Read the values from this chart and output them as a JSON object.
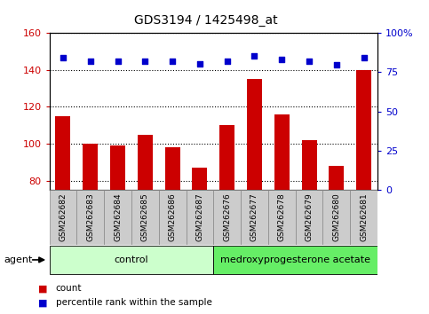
{
  "title": "GDS3194 / 1425498_at",
  "samples": [
    "GSM262682",
    "GSM262683",
    "GSM262684",
    "GSM262685",
    "GSM262686",
    "GSM262687",
    "GSM262676",
    "GSM262677",
    "GSM262678",
    "GSM262679",
    "GSM262680",
    "GSM262681"
  ],
  "counts": [
    115,
    100,
    99,
    105,
    98,
    87,
    110,
    135,
    116,
    102,
    88,
    140
  ],
  "percentile_ranks_left": [
    146.5,
    144.5,
    144.5,
    144.5,
    144.5,
    143.5,
    144.5,
    147.5,
    145.5,
    144.5,
    143.0,
    146.5
  ],
  "ylim_left": [
    75,
    160
  ],
  "ylim_right": [
    0,
    100
  ],
  "yticks_left": [
    80,
    100,
    120,
    140,
    160
  ],
  "yticks_right": [
    0,
    25,
    50,
    75,
    100
  ],
  "bar_color": "#cc0000",
  "dot_color": "#0000cc",
  "control_group": [
    0,
    1,
    2,
    3,
    4,
    5
  ],
  "treatment_group": [
    6,
    7,
    8,
    9,
    10,
    11
  ],
  "control_label": "control",
  "treatment_label": "medroxyprogesterone acetate",
  "control_color": "#ccffcc",
  "treatment_color": "#66ee66",
  "agent_label": "agent",
  "legend_count_label": "count",
  "legend_pct_label": "percentile rank within the sample",
  "left_tick_color": "#cc0000",
  "right_tick_color": "#0000cc",
  "tick_box_color": "#cccccc",
  "bar_bottom": 75
}
